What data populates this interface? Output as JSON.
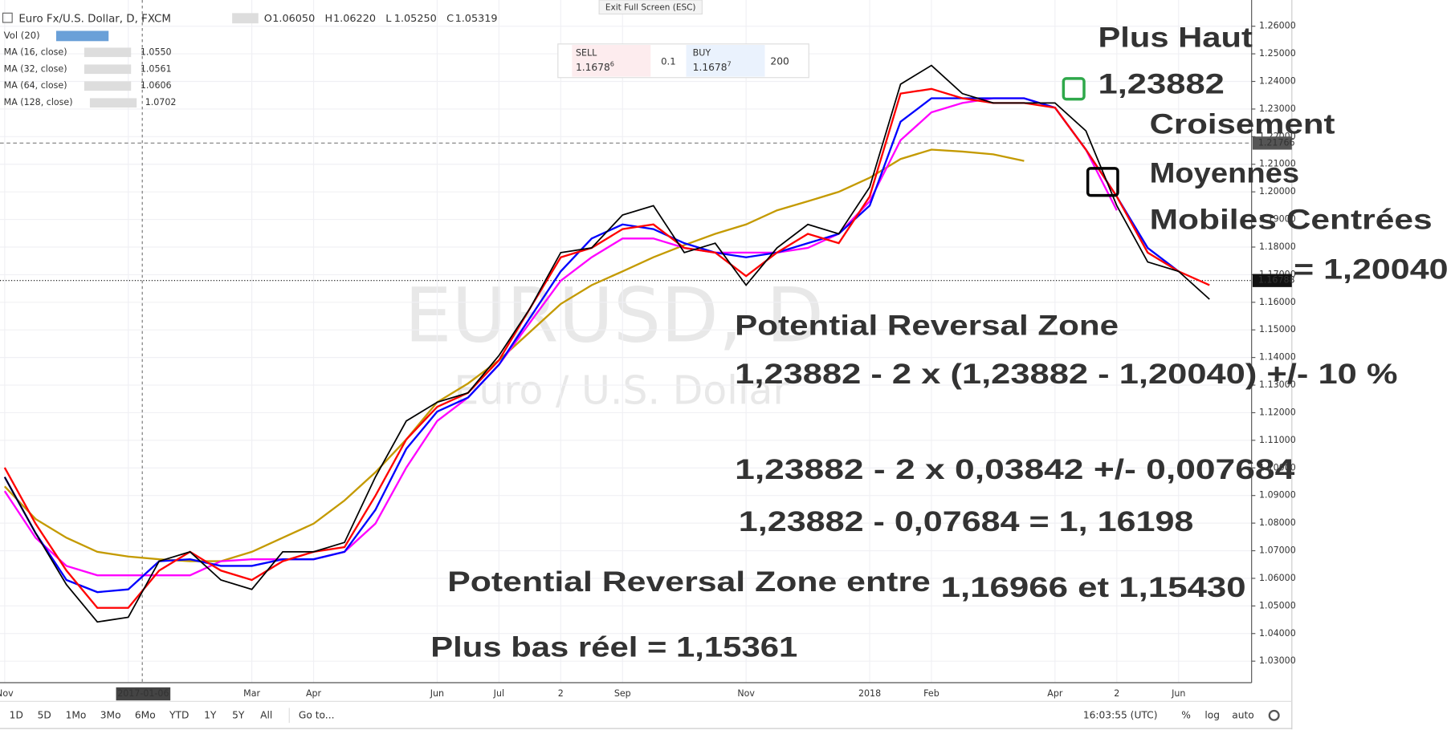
{
  "exit_button": "Exit Full Screen (ESC)",
  "header": {
    "ohlc": [
      {
        "key": "O",
        "value": "1.06050"
      },
      {
        "key": "H",
        "value": "1.06220"
      },
      {
        "key": "L",
        "value": "1.05250"
      },
      {
        "key": "C",
        "value": "1.05319"
      }
    ],
    "volume": "Vol (20)"
  },
  "trade": {
    "sell_label": "SELL",
    "sell_price": "1.1678",
    "sell_pip": "6",
    "spread": "0.1",
    "buy_label": "BUY",
    "buy_price": "1.1678",
    "buy_pip": "7",
    "quantity": "200"
  },
  "watermark": {
    "symbol": "EURUSD, D",
    "description": "Euro / U.S. Dollar"
  },
  "annotations": [
    {
      "text": "Plus Haut",
      "color": "#2ea84a"
    },
    {
      "text": "1,23882",
      "color": "#2ea84a"
    },
    {
      "text": "Croisement",
      "color": "#000000"
    },
    {
      "text": "Moyennes",
      "color": "#000000"
    },
    {
      "text": "Mobiles Centrées",
      "color": "#000000"
    },
    {
      "text": "= 1,20040",
      "color": "#000000"
    },
    {
      "text": "Potential Reversal Zone",
      "color": "#e8202a"
    },
    {
      "text": "1,23882 - 2 x (1,23882 - 1,20040) +/- 10 %",
      "color": "#e8202a"
    },
    {
      "text": "1,23882 - 2 x  0,03842 +/- 0,007684",
      "color": "#e8202a"
    },
    {
      "text": "1,23882 - 0,07684 = 1, 16198",
      "color": "#e8202a"
    },
    {
      "text": "Potential Reversal Zone entre",
      "color": "#e8202a"
    },
    {
      "text": "1,16966 et 1,15430",
      "color": "#e8202a"
    },
    {
      "text": "Plus bas réel = 1,15361",
      "color": "#e8202a"
    }
  ],
  "toolbar": {
    "ranges": [
      "1D",
      "5D",
      "1Mo",
      "3Mo",
      "6Mo",
      "YTD",
      "1Y",
      "5Y",
      "All"
    ],
    "goto": "Go to...",
    "time": "16:03:55 (UTC)",
    "percent": "%",
    "log": "log",
    "auto": "auto"
  },
  "chart_data": {
    "type": "line",
    "categories": [
      "Nov",
      null,
      null,
      null,
      "2017-01-06",
      null,
      null,
      null,
      "Mar",
      null,
      "Apr",
      null,
      null,
      null,
      "Jun",
      null,
      "Jul",
      null,
      "2",
      null,
      "Sep",
      null,
      null,
      null,
      "Nov",
      null,
      null,
      null,
      "2018",
      null,
      "Feb",
      null,
      null,
      null,
      "Apr",
      null,
      "2",
      null,
      "Jun",
      null
    ],
    "series": [
      {
        "name": "Euro Fx/U.S. Dollar, D, FXCM",
        "color": "#000000",
        "values": [
          1.0967,
          1.0764,
          1.0577,
          1.0442,
          1.0459,
          1.0662,
          1.0696,
          1.0594,
          1.056,
          1.0696,
          1.0696,
          1.073,
          1.0967,
          1.117,
          1.1238,
          1.1272,
          1.1407,
          1.1577,
          1.178,
          1.1797,
          1.1916,
          1.195,
          1.178,
          1.1814,
          1.1662,
          1.1797,
          1.1882,
          1.1848,
          1.2017,
          1.239,
          1.2458,
          1.2356,
          1.2322,
          1.2322,
          1.2322,
          1.2221,
          1.195,
          1.1746,
          1.1712,
          1.1611
        ]
      },
      {
        "name": "MA (16, close)",
        "color": "#ff0000",
        "legend_value": "1.0550",
        "values": [
          1.1001,
          1.0798,
          1.0628,
          1.0493,
          1.0493,
          1.0628,
          1.0696,
          1.0628,
          1.0594,
          1.0662,
          1.0696,
          1.0713,
          1.0899,
          1.1103,
          1.1221,
          1.1272,
          1.139,
          1.1577,
          1.1763,
          1.1797,
          1.1865,
          1.1882,
          1.1797,
          1.178,
          1.1695,
          1.178,
          1.1848,
          1.1814,
          1.1983,
          1.2356,
          1.2373,
          1.2339,
          1.2322,
          1.2322,
          1.2305,
          1.2153,
          1.1983,
          1.178,
          1.1712,
          1.1662
        ]
      },
      {
        "name": "MA (32, close)",
        "color": "#0000ff",
        "legend_value": "1.0561",
        "values": [
          1.0967,
          1.0764,
          1.0594,
          1.055,
          1.056,
          1.0662,
          1.0669,
          1.0645,
          1.0645,
          1.0669,
          1.0669,
          1.0696,
          1.0848,
          1.1069,
          1.1204,
          1.1255,
          1.1374,
          1.1543,
          1.1712,
          1.1831,
          1.1882,
          1.1865,
          1.1814,
          1.178,
          1.1763,
          1.178,
          1.1814,
          1.1848,
          1.195,
          1.2254,
          1.2339,
          1.2339,
          1.2339,
          1.2339,
          1.2305,
          1.2153,
          1.1983,
          1.1797,
          1.1712,
          null
        ]
      },
      {
        "name": "MA (64, close)",
        "color": "#ff00ff",
        "legend_value": "1.0606",
        "values": [
          1.0916,
          1.0747,
          1.0645,
          1.0611,
          1.0611,
          1.0611,
          1.0611,
          1.0662,
          1.0669,
          1.0669,
          1.0669,
          1.0696,
          1.0798,
          1.1001,
          1.117,
          1.1255,
          1.1374,
          1.1526,
          1.1678,
          1.1763,
          1.1831,
          1.1831,
          1.1797,
          1.178,
          1.178,
          1.178,
          1.1797,
          1.1848,
          1.1966,
          1.2187,
          1.2288,
          1.2322,
          1.2339,
          1.2339,
          1.2305,
          1.2153,
          1.1933,
          null,
          null,
          null
        ]
      },
      {
        "name": "MA (128, close)",
        "color": "#c49a00",
        "legend_value": "1.0702",
        "values": [
          1.0933,
          1.0815,
          1.0747,
          1.0696,
          1.0679,
          1.0669,
          1.0662,
          1.0662,
          1.0696,
          1.0747,
          1.0798,
          1.0882,
          1.0984,
          1.1103,
          1.1238,
          1.1306,
          1.139,
          1.1492,
          1.1594,
          1.1662,
          1.1712,
          1.1763,
          1.1807,
          1.1848,
          1.1882,
          1.1933,
          1.1966,
          1.2,
          1.2051,
          1.2119,
          1.2153,
          1.2146,
          1.2136,
          1.2112,
          null,
          null,
          null,
          null,
          null,
          null
        ]
      }
    ],
    "ylim": [
      1.0222,
      1.2695
    ],
    "yticks": [
      {
        "value": 1.03,
        "label": "1.03000"
      },
      {
        "value": 1.04,
        "label": "1.04000"
      },
      {
        "value": 1.05,
        "label": "1.05000"
      },
      {
        "value": 1.06,
        "label": "1.06000"
      },
      {
        "value": 1.07,
        "label": "1.07000"
      },
      {
        "value": 1.08,
        "label": "1.08000"
      },
      {
        "value": 1.09,
        "label": "1.09000"
      },
      {
        "value": 1.1,
        "label": "1.10000"
      },
      {
        "value": 1.11,
        "label": "1.11000"
      },
      {
        "value": 1.12,
        "label": "1.12000"
      },
      {
        "value": 1.13,
        "label": "1.13000"
      },
      {
        "value": 1.14,
        "label": "1.14000"
      },
      {
        "value": 1.15,
        "label": "1.15000"
      },
      {
        "value": 1.16,
        "label": "1.16000"
      },
      {
        "value": 1.17,
        "label": "1.17000"
      },
      {
        "value": 1.18,
        "label": "1.18000"
      },
      {
        "value": 1.19,
        "label": "1.19000"
      },
      {
        "value": 1.2,
        "label": "1.20000"
      },
      {
        "value": 1.21,
        "label": "1.21000"
      },
      {
        "value": 1.22,
        "label": "1.22000"
      },
      {
        "value": 1.23,
        "label": "1.23000"
      },
      {
        "value": 1.24,
        "label": "1.24000"
      },
      {
        "value": 1.25,
        "label": "1.25000"
      },
      {
        "value": 1.26,
        "label": "1.26000"
      }
    ],
    "grid": true,
    "hlines": [
      1.21766,
      1.16788
    ]
  }
}
